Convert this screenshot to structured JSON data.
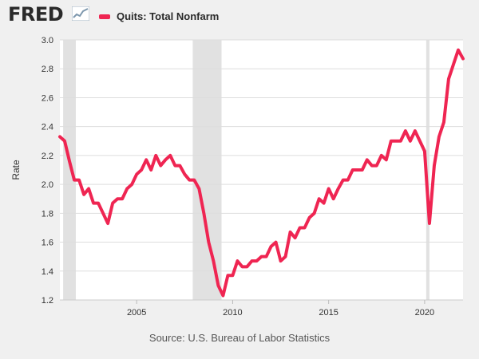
{
  "header": {
    "logo_text": "FRED",
    "legend_label": "Quits: Total Nonfarm"
  },
  "source_text": "Source: U.S. Bureau of Labor Statistics",
  "colors": {
    "series": "#ef2552",
    "recession": "#e1e1e1",
    "plot_bg": "#ffffff",
    "page_bg": "#f0f0f0",
    "grid": "#dddddd",
    "axis_text": "#333333"
  },
  "chart_data": {
    "type": "line",
    "title": "Quits: Total Nonfarm",
    "xlabel": "",
    "ylabel": "Rate",
    "xlim": [
      2001.0,
      2022.0
    ],
    "ylim": [
      1.2,
      3.0
    ],
    "xticks": [
      2005,
      2010,
      2015,
      2020
    ],
    "yticks": [
      1.2,
      1.4,
      1.6,
      1.8,
      2.0,
      2.2,
      2.4,
      2.6,
      2.8,
      3.0
    ],
    "grid": true,
    "legend": "top-left",
    "recessions": [
      {
        "start": 2001.17,
        "end": 2001.83
      },
      {
        "start": 2007.92,
        "end": 2009.42
      },
      {
        "start": 2020.08,
        "end": 2020.25
      }
    ],
    "series": [
      {
        "name": "Quits: Total Nonfarm",
        "x": [
          2001.0,
          2001.25,
          2001.5,
          2001.75,
          2002.0,
          2002.25,
          2002.5,
          2002.75,
          2003.0,
          2003.25,
          2003.5,
          2003.75,
          2004.0,
          2004.25,
          2004.5,
          2004.75,
          2005.0,
          2005.25,
          2005.5,
          2005.75,
          2006.0,
          2006.25,
          2006.5,
          2006.75,
          2007.0,
          2007.25,
          2007.5,
          2007.75,
          2008.0,
          2008.25,
          2008.5,
          2008.75,
          2009.0,
          2009.25,
          2009.5,
          2009.75,
          2010.0,
          2010.25,
          2010.5,
          2010.75,
          2011.0,
          2011.25,
          2011.5,
          2011.75,
          2012.0,
          2012.25,
          2012.5,
          2012.75,
          2013.0,
          2013.25,
          2013.5,
          2013.75,
          2014.0,
          2014.25,
          2014.5,
          2014.75,
          2015.0,
          2015.25,
          2015.5,
          2015.75,
          2016.0,
          2016.25,
          2016.5,
          2016.75,
          2017.0,
          2017.25,
          2017.5,
          2017.75,
          2018.0,
          2018.25,
          2018.5,
          2018.75,
          2019.0,
          2019.25,
          2019.5,
          2019.75,
          2020.0,
          2020.25,
          2020.5,
          2020.75,
          2021.0,
          2021.25,
          2021.5,
          2021.75,
          2022.0
        ],
        "values": [
          2.33,
          2.3,
          2.16,
          2.03,
          2.03,
          1.93,
          1.97,
          1.87,
          1.87,
          1.8,
          1.73,
          1.87,
          1.9,
          1.9,
          1.97,
          2.0,
          2.07,
          2.1,
          2.17,
          2.1,
          2.2,
          2.13,
          2.17,
          2.2,
          2.13,
          2.13,
          2.07,
          2.03,
          2.03,
          1.97,
          1.8,
          1.6,
          1.47,
          1.3,
          1.23,
          1.37,
          1.37,
          1.47,
          1.43,
          1.43,
          1.47,
          1.47,
          1.5,
          1.5,
          1.57,
          1.6,
          1.47,
          1.5,
          1.67,
          1.63,
          1.7,
          1.7,
          1.77,
          1.8,
          1.9,
          1.87,
          1.97,
          1.9,
          1.97,
          2.03,
          2.03,
          2.1,
          2.1,
          2.1,
          2.17,
          2.13,
          2.13,
          2.2,
          2.17,
          2.3,
          2.3,
          2.3,
          2.37,
          2.3,
          2.37,
          2.3,
          2.23,
          1.73,
          2.13,
          2.33,
          2.43,
          2.73,
          2.83,
          2.93,
          2.87
        ]
      }
    ]
  }
}
